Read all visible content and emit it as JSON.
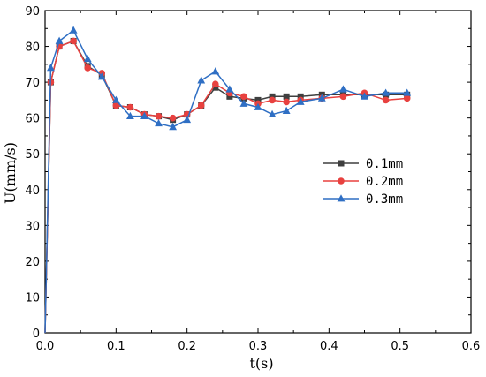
{
  "chart_data": {
    "type": "line",
    "xlabel": "t(s)",
    "ylabel": "U(mm/s)",
    "xlim": [
      0.0,
      0.6
    ],
    "ylim": [
      0,
      90
    ],
    "xticks": [
      "0.0",
      "0.1",
      "0.2",
      "0.3",
      "0.4",
      "0.5",
      "0.6"
    ],
    "yticks": [
      "0",
      "10",
      "20",
      "30",
      "40",
      "50",
      "60",
      "70",
      "80",
      "90"
    ],
    "grid": false,
    "legend_position": "right-middle",
    "series": [
      {
        "name": "0.1mm",
        "color": "#3f3f3f",
        "marker": "square",
        "points": [
          [
            0.0,
            0
          ],
          [
            0.008,
            70
          ],
          [
            0.02,
            80
          ],
          [
            0.04,
            81.5
          ],
          [
            0.06,
            74.5
          ],
          [
            0.08,
            72
          ],
          [
            0.1,
            63.5
          ],
          [
            0.12,
            63
          ],
          [
            0.14,
            61
          ],
          [
            0.16,
            60.5
          ],
          [
            0.18,
            59.5
          ],
          [
            0.2,
            61
          ],
          [
            0.22,
            63.5
          ],
          [
            0.24,
            68.5
          ],
          [
            0.26,
            66
          ],
          [
            0.28,
            65.5
          ],
          [
            0.3,
            65
          ],
          [
            0.32,
            66
          ],
          [
            0.34,
            66
          ],
          [
            0.36,
            66
          ],
          [
            0.39,
            66.5
          ],
          [
            0.42,
            66.5
          ],
          [
            0.45,
            66.5
          ],
          [
            0.48,
            66.5
          ],
          [
            0.51,
            66.5
          ]
        ]
      },
      {
        "name": "0.2mm",
        "color": "#e8413f",
        "marker": "circle",
        "points": [
          [
            0.0,
            0
          ],
          [
            0.008,
            70
          ],
          [
            0.02,
            80
          ],
          [
            0.04,
            81.5
          ],
          [
            0.06,
            74
          ],
          [
            0.08,
            72.5
          ],
          [
            0.1,
            63.5
          ],
          [
            0.12,
            63
          ],
          [
            0.14,
            61
          ],
          [
            0.16,
            60.5
          ],
          [
            0.18,
            60
          ],
          [
            0.2,
            61
          ],
          [
            0.22,
            63.5
          ],
          [
            0.24,
            69.5
          ],
          [
            0.26,
            67
          ],
          [
            0.28,
            66
          ],
          [
            0.3,
            64
          ],
          [
            0.32,
            65
          ],
          [
            0.34,
            64.5
          ],
          [
            0.36,
            65
          ],
          [
            0.39,
            65.5
          ],
          [
            0.42,
            66
          ],
          [
            0.45,
            67
          ],
          [
            0.48,
            65
          ],
          [
            0.51,
            65.5
          ]
        ]
      },
      {
        "name": "0.3mm",
        "color": "#2f6fc4",
        "marker": "triangle",
        "points": [
          [
            0.0,
            0
          ],
          [
            0.008,
            74
          ],
          [
            0.02,
            81.5
          ],
          [
            0.04,
            84.5
          ],
          [
            0.06,
            76.5
          ],
          [
            0.08,
            71.5
          ],
          [
            0.1,
            65
          ],
          [
            0.12,
            60.5
          ],
          [
            0.14,
            60.5
          ],
          [
            0.16,
            58.5
          ],
          [
            0.18,
            57.5
          ],
          [
            0.2,
            59.5
          ],
          [
            0.22,
            70.5
          ],
          [
            0.24,
            73
          ],
          [
            0.26,
            68
          ],
          [
            0.28,
            64
          ],
          [
            0.3,
            63
          ],
          [
            0.32,
            61
          ],
          [
            0.34,
            62
          ],
          [
            0.36,
            64.5
          ],
          [
            0.39,
            65.5
          ],
          [
            0.42,
            68
          ],
          [
            0.45,
            66
          ],
          [
            0.48,
            67
          ],
          [
            0.51,
            67
          ]
        ]
      }
    ]
  }
}
